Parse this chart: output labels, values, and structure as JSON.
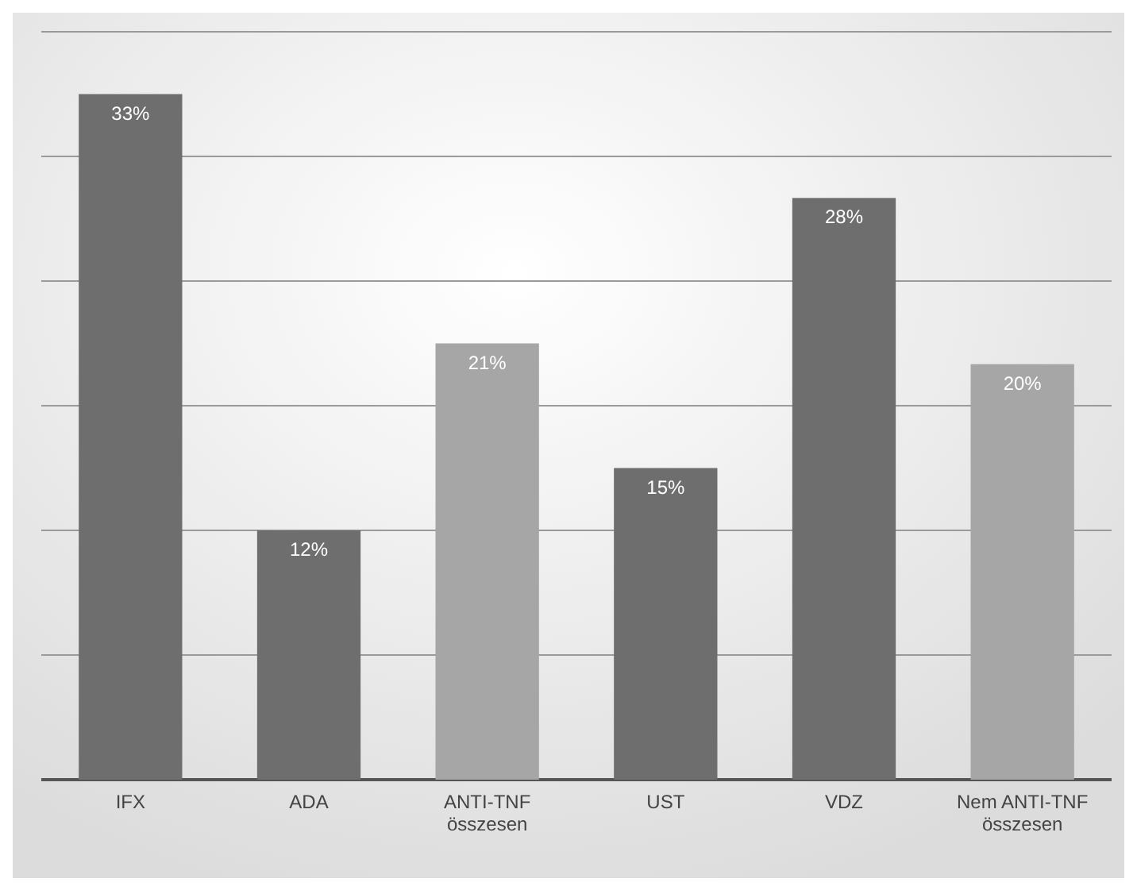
{
  "chart_data": {
    "type": "bar",
    "categories": [
      "IFX",
      "ADA",
      "ANTI-TNF\nösszesen",
      "UST",
      "VDZ",
      "Nem ANTI-TNF\nösszesen"
    ],
    "values": [
      33,
      12,
      21,
      15,
      28,
      20
    ],
    "colors": [
      "#6e6e6e",
      "#6e6e6e",
      "#a6a6a6",
      "#6e6e6e",
      "#6e6e6e",
      "#a6a6a6"
    ],
    "data_labels": true,
    "value_labels": [
      "33%",
      "12%",
      "21%",
      "15%",
      "28%",
      "20%"
    ],
    "ylim": [
      0,
      36
    ],
    "yticks": [
      {
        "value": 0,
        "label": null
      },
      {
        "value": 6,
        "label": null
      },
      {
        "value": 12,
        "label": null
      },
      {
        "value": 18,
        "label": null
      },
      {
        "value": 24,
        "label": null
      },
      {
        "value": 30,
        "label": null
      },
      {
        "value": 36,
        "label": null
      }
    ],
    "grid": "y",
    "tick_labels": "x"
  }
}
